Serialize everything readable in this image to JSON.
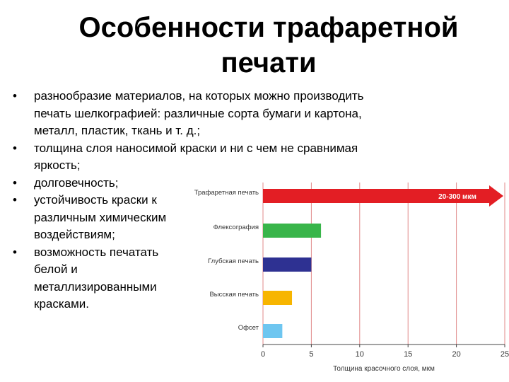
{
  "slide": {
    "title_line1": "Особенности трафаретной",
    "title_line2": "печати",
    "bullets": [
      "разнообразие материалов, на которых можно производить печать шелкографией: различные сорта бумаги и картона, металл, пластик, ткань и т. д.;",
      "толщина слоя наносимой краски и ни с чем не сравнимая яркость;",
      "долговечность;",
      "устойчивость краски к различным химическим воздействиям;",
      "возможность печатать белой и металлизированными красками."
    ]
  },
  "chart_data": {
    "type": "bar",
    "orientation": "horizontal",
    "categories": [
      "Трафаретная печать",
      "Флексография",
      "Глубская печать",
      "Высская печать",
      "Офсет"
    ],
    "values": [
      25,
      6,
      5,
      3,
      2
    ],
    "colors": [
      "#e31e24",
      "#39b54a",
      "#2e3192",
      "#f7b500",
      "#6ec6f0"
    ],
    "bar_annotation": "20-300 мкм",
    "xlabel": "Толщина красочного слоя, мкм",
    "xlim": [
      0,
      25
    ],
    "xticks": [
      0,
      5,
      10,
      15,
      20,
      25
    ],
    "grid": true,
    "grid_color": "#e08a8a"
  }
}
